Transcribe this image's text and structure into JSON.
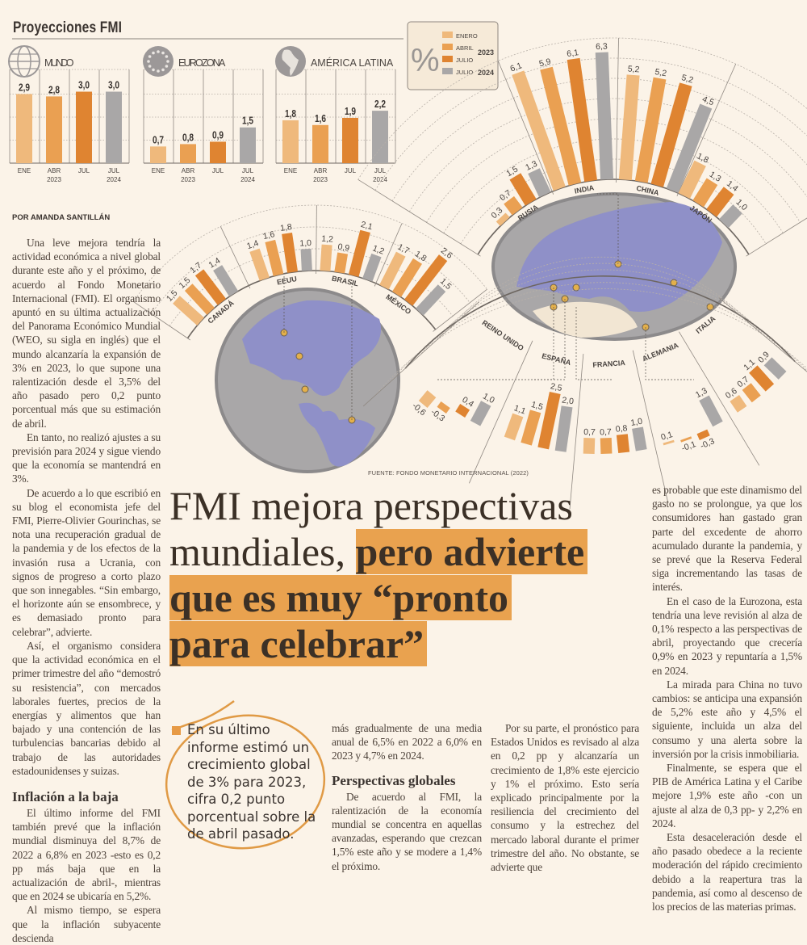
{
  "header": {
    "title": "Proyecciones FMI"
  },
  "legend": {
    "symbol": "%",
    "items": [
      "ENERO",
      "ABRIL",
      "JULIO",
      "JULIO"
    ],
    "years": [
      "2023",
      "2024"
    ],
    "colors": [
      "#efb97c",
      "#eaa052",
      "#df8431",
      "#a9a7a7"
    ]
  },
  "source": "FUENTE: FONDO MONETARIO INTERNACIONAL (2022)",
  "chart_data": [
    {
      "type": "bar",
      "title": "MUNDO",
      "icon": "globe-icon",
      "categories": [
        "ENE",
        "ABR",
        "JUL",
        "JUL"
      ],
      "years": [
        "2023",
        "2024"
      ],
      "values": [
        2.9,
        2.8,
        3.0,
        3.0
      ]
    },
    {
      "type": "bar",
      "title": "EUROZONA",
      "icon": "eu-stars-icon",
      "categories": [
        "ENE",
        "ABR",
        "JUL",
        "JUL"
      ],
      "years": [
        "2023",
        "2024"
      ],
      "values": [
        0.7,
        0.8,
        0.9,
        1.5
      ]
    },
    {
      "type": "bar",
      "title": "AMÉRICA LATINA",
      "icon": "latin-america-globe-icon",
      "categories": [
        "ENE",
        "ABR",
        "JUL",
        "JUL"
      ],
      "years": [
        "2023",
        "2024"
      ],
      "values": [
        1.8,
        1.6,
        1.9,
        2.2
      ]
    },
    {
      "type": "bar",
      "layout": "radial",
      "categories": [
        "RUSIA",
        "INDIA",
        "CHINA",
        "JAPÓN"
      ],
      "series": [
        {
          "name": "ENERO 2023",
          "values": [
            0.3,
            6.1,
            5.2,
            1.8
          ]
        },
        {
          "name": "ABRIL 2023",
          "values": [
            0.7,
            5.9,
            5.2,
            1.3
          ]
        },
        {
          "name": "JULIO 2023",
          "values": [
            1.5,
            6.1,
            5.2,
            1.4
          ]
        },
        {
          "name": "JULIO 2024",
          "values": [
            1.3,
            6.3,
            4.5,
            1.0
          ]
        }
      ]
    },
    {
      "type": "bar",
      "layout": "radial",
      "categories": [
        "CANADÁ",
        "EEUU",
        "BRASIL",
        "MÉXICO"
      ],
      "series": [
        {
          "name": "ENERO 2023",
          "values": [
            1.5,
            1.4,
            1.2,
            1.7
          ]
        },
        {
          "name": "ABRIL 2023",
          "values": [
            1.5,
            1.6,
            0.9,
            1.8
          ]
        },
        {
          "name": "JULIO 2023",
          "values": [
            1.7,
            1.8,
            2.1,
            2.6
          ]
        },
        {
          "name": "JULIO 2024",
          "values": [
            1.4,
            1.0,
            1.2,
            1.5
          ]
        }
      ]
    },
    {
      "type": "bar",
      "layout": "radial",
      "categories": [
        "REINO UNIDO",
        "ESPAÑA",
        "FRANCIA",
        "ALEMANIA",
        "ITALIA"
      ],
      "series": [
        {
          "name": "ENERO 2023",
          "values": [
            -0.6,
            1.1,
            0.7,
            0.1,
            0.6
          ]
        },
        {
          "name": "ABRIL 2023",
          "values": [
            -0.3,
            1.5,
            0.7,
            -0.1,
            0.7
          ]
        },
        {
          "name": "JULIO 2023",
          "values": [
            0.4,
            2.5,
            0.8,
            -0.3,
            1.1
          ]
        },
        {
          "name": "JULIO 2024",
          "values": [
            1.0,
            2.0,
            1.0,
            1.3,
            0.9
          ]
        }
      ]
    }
  ],
  "article": {
    "byline": "POR AMANDA SANTILLÁN",
    "headline": {
      "light_1": "FMI mejora perspectivas",
      "light_2": "mundiales,",
      "bold_1": "pero advierte",
      "bold_2": "que es muy “pronto",
      "bold_3": "para celebrar”"
    },
    "col1": [
      "Una leve mejora tendría la actividad económica a nivel global durante este año y el próximo, de acuerdo al Fondo Monetario Internacional (FMI). El organismo apuntó en su última actualización del Panorama Económico Mundial (WEO, su sigla en inglés) que el mundo alcanzaría la expansión de 3% en 2023, lo que supone una ralentización desde el 3,5% del año pasado pero 0,2 punto porcentual más que su estimación de abril.",
      "En tanto, no realizó ajustes a su previsión para 2024 y sigue viendo que la economía se mantendrá en 3%.",
      "De acuerdo a lo que escribió en su blog el economista jefe del FMI, Pierre-Olivier Gourinchas, se nota una recuperación gradual de la pandemia y de los efectos de la invasión rusa a Ucrania, con signos de progreso a corto plazo que son innegables. “Sin embargo, el horizonte aún se ensombrece, y es demasiado pronto para celebrar”, advierte.",
      "Así, el organismo considera que la actividad económica en el primer trimestre del año “demostró su resistencia”, con mercados laborales fuertes, precios de la energías y alimentos que han bajado y una contención de las turbulencias bancarias debido al trabajo de las autoridades estadounidenses y suizas."
    ],
    "inflation_heading": "Inflación a la baja",
    "col1b": [
      "El último informe del FMI también prevé que la inflación mundial disminuya del 8,7% de 2022 a 6,8% en 2023 -esto es 0,2 pp más baja que en la actualización de abril-, mientras que en 2024 se ubicaría en 5,2%.",
      "Al mismo tiempo, se espera que la inflación subyacente descienda"
    ],
    "pull_quote": "En su último informe estimó un crecimiento global de 3% para 2023, cifra 0,2 punto porcentual sobre la de abril pasado.",
    "col3a": "más gradualmente de una media anual de 6,5% en 2022 a 6,0% en 2023 y 4,7% en 2024.",
    "perspectives_heading": "Perspectivas globales",
    "col3b": "De acuerdo al FMI, la ralentización de la economía mundial se concentra en aquellas avanzadas, esperando que crezcan 1,5% este año y se modere a 1,4% el próximo.",
    "col4": "Por su parte, el pronóstico para Estados Unidos es revisado al alza en 0,2 pp y alcanzaría un crecimiento de 1,8% este ejercicio y 1% el próximo. Esto sería explicado principalmente por la resiliencia del crecimiento del consumo y la estrechez del mercado laboral durante el primer trimestre del año. No obstante, se advierte que",
    "col5": [
      "es probable que este dinamismo del gasto no se prolongue, ya que los consumidores han gastado gran parte del excedente de ahorro acumulado durante la pandemia, y se prevé que la Reserva Federal siga incrementando las tasas de interés.",
      "En el caso de la Eurozona, esta tendría una leve revisión al alza de 0,1% respecto a las perspectivas de abril, proyectando que crecería 0,9% en 2023 y repuntaría a 1,5% en 2024.",
      "La mirada para China no tuvo cambios: se anticipa una expansión de 5,2% este año y 4,5% el siguiente, incluida un alza del consumo y una alerta sobre la inversión por la crisis inmobiliaria.",
      "Finalmente, se espera que el PIB de América Latina y el Caribe mejore 1,9% este año -con un ajuste al alza de 0,3 pp- y 2,2% en 2024.",
      "Esta desaceleración desde el año pasado obedece a la reciente moderación del rápido crecimiento debido a la reapertura tras la pandemia, así como al descenso de los precios de las materias primas."
    ]
  }
}
